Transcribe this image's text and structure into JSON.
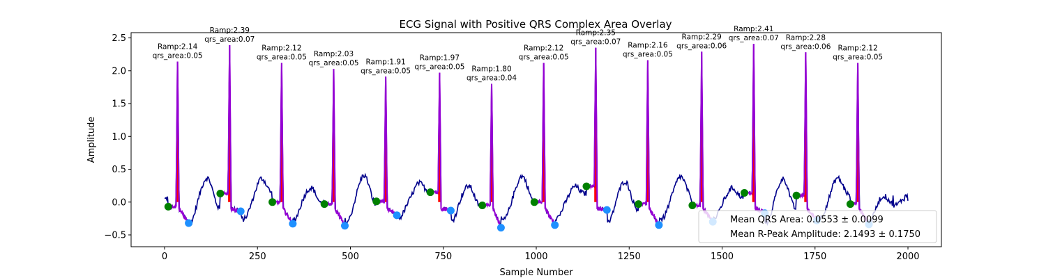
{
  "chart_data": {
    "type": "line",
    "title": "ECG Signal with Positive QRS Complex Area Overlay",
    "xlabel": "Sample Number",
    "ylabel": "Amplitude",
    "xlim": [
      -90,
      2090
    ],
    "ylim": [
      -0.68,
      2.58
    ],
    "xticks": [
      0,
      250,
      500,
      750,
      1000,
      1250,
      1500,
      1750,
      2000
    ],
    "yticks": [
      -0.5,
      0.0,
      0.5,
      1.0,
      1.5,
      2.0,
      2.5
    ],
    "xtick_labels": [
      "0",
      "250",
      "500",
      "750",
      "1000",
      "1250",
      "1500",
      "1750",
      "2000"
    ],
    "ytick_labels": [
      "−0.5",
      "0.0",
      "0.5",
      "1.0",
      "1.5",
      "2.0",
      "2.5"
    ],
    "grid": false,
    "legend_position": "lower-right",
    "colors": {
      "signal": "#00008b",
      "qrs_segment": "#9400d3",
      "qrs_area_fill": "#ff0000",
      "qrs_onset_marker": "#008000",
      "qrs_offset_marker": "#1e90ff"
    },
    "beats": [
      {
        "r_x": 35,
        "r_amp": 2.14,
        "qrs_area": 0.05,
        "onset_x": 10,
        "onset_y": -0.07,
        "offset_x": 65,
        "offset_y": -0.32,
        "label_ramp": "Ramp:2.14",
        "label_area": "qrs_area:0.05"
      },
      {
        "r_x": 175,
        "r_amp": 2.39,
        "qrs_area": 0.07,
        "onset_x": 150,
        "onset_y": 0.13,
        "offset_x": 205,
        "offset_y": -0.14,
        "label_ramp": "Ramp:2.39",
        "label_area": "qrs_area:0.07"
      },
      {
        "r_x": 315,
        "r_amp": 2.12,
        "qrs_area": 0.05,
        "onset_x": 290,
        "onset_y": 0.0,
        "offset_x": 345,
        "offset_y": -0.33,
        "label_ramp": "Ramp:2.12",
        "label_area": "qrs_area:0.05"
      },
      {
        "r_x": 455,
        "r_amp": 2.03,
        "qrs_area": 0.05,
        "onset_x": 430,
        "onset_y": -0.03,
        "offset_x": 485,
        "offset_y": -0.36,
        "label_ramp": "Ramp:2.03",
        "label_area": "qrs_area:0.05"
      },
      {
        "r_x": 595,
        "r_amp": 1.91,
        "qrs_area": 0.05,
        "onset_x": 570,
        "onset_y": 0.01,
        "offset_x": 625,
        "offset_y": -0.2,
        "label_ramp": "Ramp:1.91",
        "label_area": "qrs_area:0.05"
      },
      {
        "r_x": 740,
        "r_amp": 1.97,
        "qrs_area": 0.05,
        "onset_x": 715,
        "onset_y": 0.15,
        "offset_x": 770,
        "offset_y": -0.13,
        "label_ramp": "Ramp:1.97",
        "label_area": "qrs_area:0.05"
      },
      {
        "r_x": 880,
        "r_amp": 1.8,
        "qrs_area": 0.04,
        "onset_x": 855,
        "onset_y": -0.05,
        "offset_x": 905,
        "offset_y": -0.39,
        "label_ramp": "Ramp:1.80",
        "label_area": "qrs_area:0.04"
      },
      {
        "r_x": 1020,
        "r_amp": 2.12,
        "qrs_area": 0.05,
        "onset_x": 995,
        "onset_y": 0.0,
        "offset_x": 1050,
        "offset_y": -0.35,
        "label_ramp": "Ramp:2.12",
        "label_area": "qrs_area:0.05"
      },
      {
        "r_x": 1160,
        "r_amp": 2.35,
        "qrs_area": 0.07,
        "onset_x": 1135,
        "onset_y": 0.24,
        "offset_x": 1190,
        "offset_y": -0.12,
        "label_ramp": "Ramp:2.35",
        "label_area": "qrs_area:0.07"
      },
      {
        "r_x": 1300,
        "r_amp": 2.16,
        "qrs_area": 0.05,
        "onset_x": 1275,
        "onset_y": -0.03,
        "offset_x": 1330,
        "offset_y": -0.35,
        "label_ramp": "Ramp:2.16",
        "label_area": "qrs_area:0.05"
      },
      {
        "r_x": 1445,
        "r_amp": 2.29,
        "qrs_area": 0.06,
        "onset_x": 1420,
        "onset_y": -0.05,
        "offset_x": 1475,
        "offset_y": -0.3,
        "label_ramp": "Ramp:2.29",
        "label_area": "qrs_area:0.06"
      },
      {
        "r_x": 1585,
        "r_amp": 2.41,
        "qrs_area": 0.07,
        "onset_x": 1560,
        "onset_y": 0.14,
        "offset_x": 1615,
        "offset_y": -0.17,
        "label_ramp": "Ramp:2.41",
        "label_area": "qrs_area:0.07"
      },
      {
        "r_x": 1725,
        "r_amp": 2.28,
        "qrs_area": 0.06,
        "onset_x": 1700,
        "onset_y": 0.1,
        "offset_x": 1755,
        "offset_y": -0.28,
        "label_ramp": "Ramp:2.28",
        "label_area": "qrs_area:0.06"
      },
      {
        "r_x": 1865,
        "r_amp": 2.12,
        "qrs_area": 0.05,
        "onset_x": 1845,
        "onset_y": -0.03,
        "offset_x": 1895,
        "offset_y": -0.34,
        "label_ramp": "Ramp:2.12",
        "label_area": "qrs_area:0.05"
      }
    ],
    "signal_range": [
      0,
      2000
    ],
    "signal_end_values": [
      [
        1930,
        0.05
      ],
      [
        1945,
        0.25
      ],
      [
        1960,
        0.1
      ],
      [
        1975,
        0.18
      ],
      [
        1990,
        0.02
      ],
      [
        2000,
        0.02
      ]
    ],
    "legend": {
      "entries": [
        "Mean QRS Area: 0.0553 ± 0.0099",
        "Mean R-Peak Amplitude: 2.1493 ± 0.1750"
      ]
    }
  }
}
